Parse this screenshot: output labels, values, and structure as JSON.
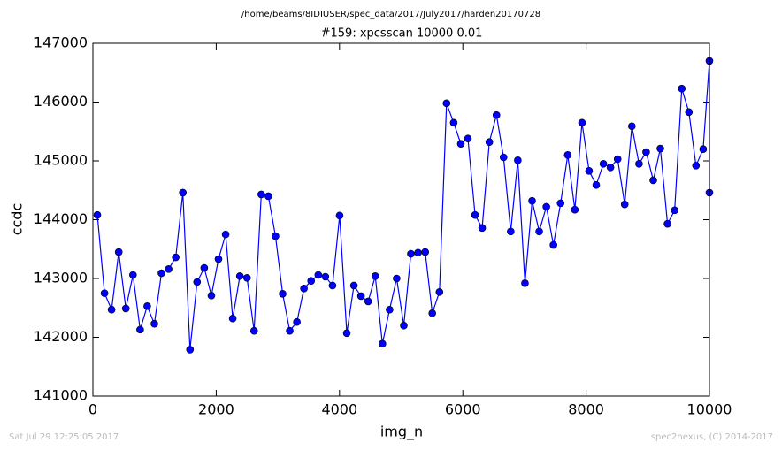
{
  "chart_data": {
    "type": "line",
    "suptitle": "/home/beams/8IDIUSER/spec_data/2017/July2017/harden20170728",
    "title": "#159: xpcsscan 10000 0.01",
    "x_label": "img_n",
    "y_label": "ccdc",
    "annotations": [
      "Sat Jul 29 12:25:05 2017",
      "spec2nexus, (C) 2014-2017"
    ],
    "x": [
      72,
      188,
      303,
      419,
      534,
      650,
      766,
      881,
      997,
      1112,
      1228,
      1344,
      1459,
      1575,
      1690,
      1806,
      1922,
      2037,
      2153,
      2268,
      2384,
      2500,
      2615,
      2731,
      2846,
      2962,
      3078,
      3193,
      3309,
      3424,
      3540,
      3656,
      3771,
      3887,
      4002,
      4118,
      4234,
      4349,
      4465,
      4580,
      4696,
      4812,
      4927,
      5043,
      5158,
      5274,
      5390,
      5505,
      5621,
      5736,
      5852,
      5968,
      6083,
      6199,
      6314,
      6430,
      6546,
      6661,
      6777,
      6892,
      7008,
      7124,
      7239,
      7355,
      7470,
      7586,
      7702,
      7817,
      7933,
      8048,
      8164,
      8280,
      8395,
      8511,
      8626,
      8742,
      8858,
      8973,
      9089,
      9204,
      9320,
      9436,
      9551,
      9667,
      9782,
      9898,
      10000,
      10000
    ],
    "series": [
      {
        "name": "ccdc",
        "color": "#0000ff",
        "values": [
          144080,
          142750,
          142470,
          143450,
          142490,
          143060,
          142130,
          142530,
          142230,
          143090,
          143160,
          143360,
          144460,
          141790,
          142940,
          143180,
          142710,
          143330,
          143750,
          142320,
          143040,
          143010,
          142110,
          144430,
          144400,
          143720,
          142740,
          142110,
          142260,
          142830,
          142960,
          143060,
          143030,
          142880,
          144070,
          142070,
          142880,
          142700,
          142610,
          143040,
          141890,
          142470,
          143000,
          142200,
          143420,
          143440,
          143450,
          142410,
          142770,
          145980,
          145650,
          145290,
          145380,
          144080,
          143860,
          145320,
          145780,
          145060,
          143800,
          145010,
          142920,
          144320,
          143800,
          144220,
          143570,
          144280,
          145100,
          144170,
          145650,
          144830,
          144590,
          144950,
          144890,
          145030,
          144260,
          145590,
          144950,
          145150,
          144670,
          145210,
          143930,
          144160,
          146230,
          145830,
          144920,
          145200,
          146700,
          144460
        ]
      }
    ],
    "xlim": [
      0,
      10000
    ],
    "xticks": [
      0,
      2000,
      4000,
      6000,
      8000,
      10000
    ],
    "ylim": [
      141000,
      147000
    ],
    "yticks": [
      141000,
      142000,
      143000,
      144000,
      145000,
      146000,
      147000
    ]
  }
}
